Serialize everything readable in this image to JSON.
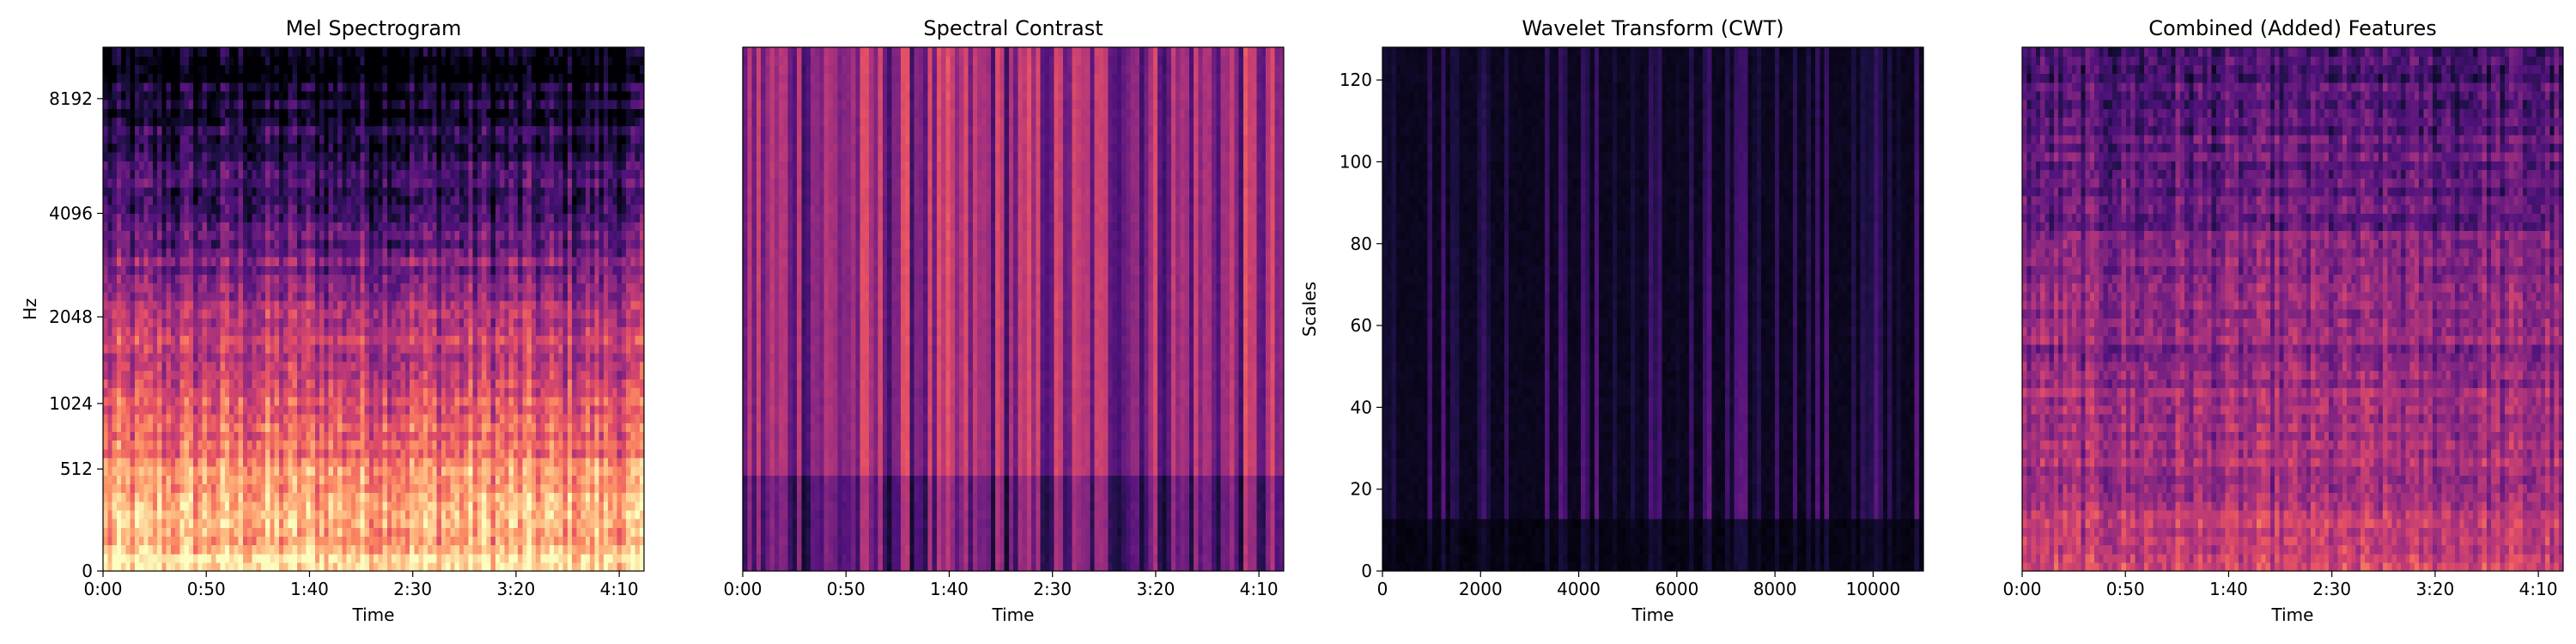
{
  "chart_data": [
    {
      "type": "heatmap",
      "title": "Mel Spectrogram",
      "xlabel": "Time",
      "ylabel": "Hz",
      "colormap": "magma",
      "x_scale": "time",
      "xlim_seconds": [
        0,
        262
      ],
      "x_ticks": [
        "0:00",
        "0:50",
        "1:40",
        "2:30",
        "3:20",
        "4:10"
      ],
      "x_tick_values_seconds": [
        0,
        50,
        100,
        150,
        200,
        250
      ],
      "y_scale": "mel",
      "y_ticks": [
        "0",
        "512",
        "1024",
        "2048",
        "4096",
        "8192"
      ],
      "y_tick_values": [
        0,
        512,
        1024,
        2048,
        4096,
        8192
      ],
      "ylim": [
        0,
        11025
      ],
      "pattern": "bright warm energy at low frequencies fading to dark above ~4096 Hz"
    },
    {
      "type": "heatmap",
      "title": "Spectral Contrast",
      "xlabel": "Time",
      "ylabel": "",
      "colormap": "magma",
      "x_scale": "time",
      "xlim_seconds": [
        0,
        262
      ],
      "x_ticks": [
        "0:00",
        "0:50",
        "1:40",
        "2:30",
        "3:20",
        "4:10"
      ],
      "x_tick_values_seconds": [
        0,
        50,
        100,
        150,
        200,
        250
      ],
      "y_ticks": [],
      "pattern": "vertical magenta-purple stripes, darker purple band at bottom"
    },
    {
      "type": "heatmap",
      "title": "Wavelet Transform (CWT)",
      "xlabel": "Time",
      "ylabel": "Scales",
      "colormap": "magma",
      "xlim": [
        0,
        11025
      ],
      "x_ticks": [
        "0",
        "2000",
        "4000",
        "6000",
        "8000",
        "10000"
      ],
      "x_tick_values": [
        0,
        2000,
        4000,
        6000,
        8000,
        10000
      ],
      "ylim": [
        0,
        128
      ],
      "y_ticks": [
        "0",
        "20",
        "40",
        "60",
        "80",
        "100",
        "120"
      ],
      "y_tick_values": [
        0,
        20,
        40,
        60,
        80,
        100,
        120
      ],
      "pattern": "mostly black with faint purple vertical streaks, slightly brighter at low scales"
    },
    {
      "type": "heatmap",
      "title": "Combined (Added) Features",
      "xlabel": "Time",
      "ylabel": "",
      "colormap": "magma",
      "x_scale": "time",
      "xlim_seconds": [
        0,
        262
      ],
      "x_ticks": [
        "0:00",
        "0:50",
        "1:40",
        "2:30",
        "3:20",
        "4:10"
      ],
      "x_tick_values_seconds": [
        0,
        50,
        100,
        150,
        200,
        250
      ],
      "y_ticks": [],
      "pattern": "purple texture with warmer orange-pink toward the bottom"
    }
  ]
}
